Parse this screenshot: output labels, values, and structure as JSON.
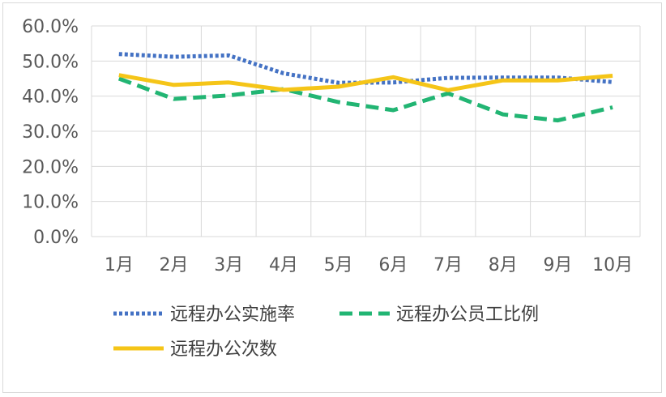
{
  "chart_data": {
    "type": "line",
    "title": "",
    "xlabel": "",
    "ylabel": "",
    "categories": [
      "1月",
      "2月",
      "3月",
      "4月",
      "5月",
      "6月",
      "7月",
      "8月",
      "9月",
      "10月"
    ],
    "ylim": [
      0,
      60
    ],
    "yticks": [
      "0.0%",
      "10.0%",
      "20.0%",
      "30.0%",
      "40.0%",
      "50.0%",
      "60.0%"
    ],
    "grid": "vertical-and-horizontal",
    "legend_position": "bottom",
    "series": [
      {
        "name": "远程办公实施率",
        "color": "#4472c4",
        "dash": "dotted",
        "values": [
          52.0,
          51.2,
          51.6,
          46.5,
          43.8,
          43.9,
          45.2,
          45.3,
          45.3,
          44.0
        ]
      },
      {
        "name": "远程办公员工比例",
        "color": "#22b573",
        "dash": "dashed",
        "values": [
          45.0,
          39.2,
          40.2,
          42.0,
          38.3,
          36.0,
          40.8,
          34.8,
          33.1,
          36.8
        ]
      },
      {
        "name": "远程办公次数",
        "color": "#f5c518",
        "dash": "solid",
        "values": [
          46.0,
          43.2,
          43.9,
          41.8,
          42.7,
          45.4,
          41.7,
          44.5,
          44.5,
          45.8
        ]
      }
    ]
  }
}
